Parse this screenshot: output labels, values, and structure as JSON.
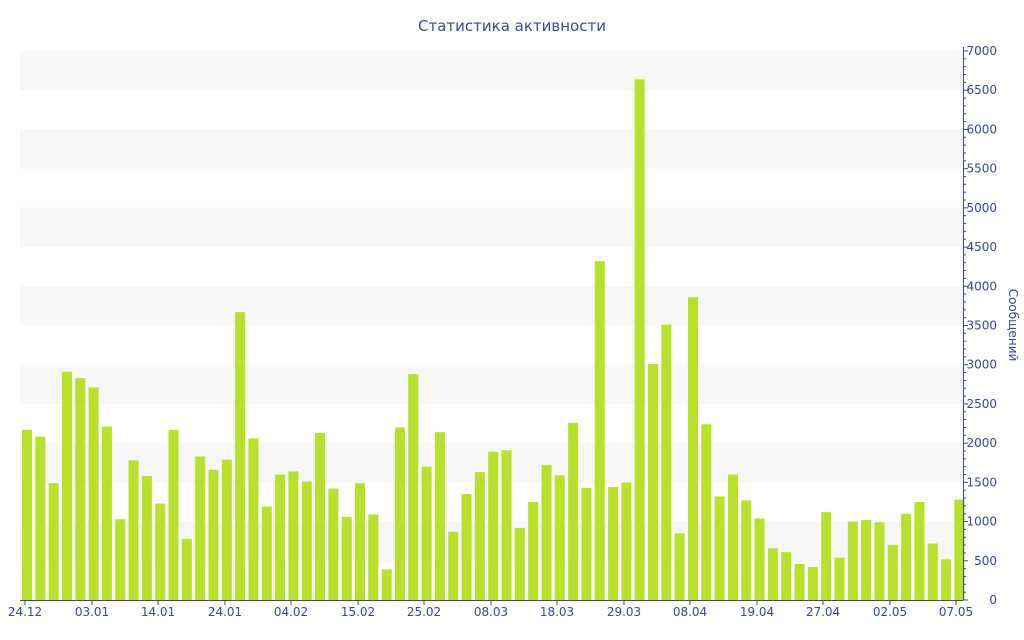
{
  "chart_data": {
    "type": "bar",
    "title": "Статистика активности",
    "xlabel": "",
    "ylabel": "Сообщений",
    "ylim": [
      0,
      7000
    ],
    "y_ticks": [
      0,
      500,
      1000,
      1500,
      2000,
      2500,
      3000,
      3500,
      4000,
      4500,
      5000,
      5500,
      6000,
      6500,
      7000
    ],
    "y_axis_side": "right",
    "grid": "alternating horizontal bands",
    "bar_color": "#b7e12a",
    "axis_color": "#3a4a8a",
    "band_color": "#f7f7f7",
    "x_tick_labels": [
      "24.12",
      "03.01",
      "14.01",
      "24.01",
      "04.02",
      "15.02",
      "25.02",
      "08.03",
      "18.03",
      "29.03",
      "08.04",
      "19.04",
      "27.04",
      "02.05",
      "07.05"
    ],
    "values": [
      2170,
      2080,
      1490,
      2910,
      2830,
      2710,
      2210,
      1030,
      1780,
      1580,
      1230,
      2170,
      780,
      1830,
      1660,
      1790,
      3670,
      2060,
      1190,
      1600,
      1640,
      1510,
      2130,
      1420,
      1060,
      1490,
      1090,
      390,
      2200,
      2880,
      1700,
      2140,
      870,
      1350,
      1630,
      1890,
      1910,
      920,
      1250,
      1720,
      1590,
      2260,
      1430,
      4320,
      1440,
      1500,
      6640,
      3010,
      3510,
      850,
      3860,
      2240,
      1320,
      1600,
      1270,
      1040,
      660,
      610,
      460,
      420,
      1120,
      540,
      1000,
      1020,
      990,
      700,
      1100,
      1250,
      720,
      520,
      1280
    ]
  }
}
